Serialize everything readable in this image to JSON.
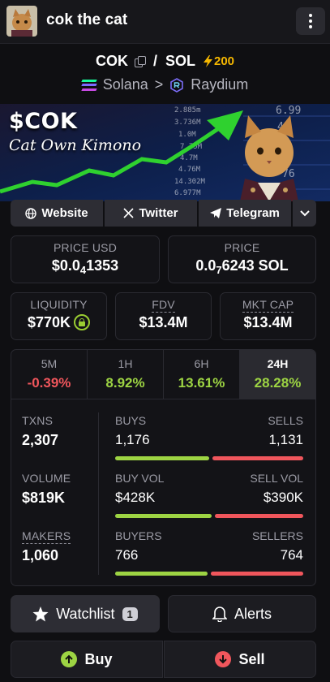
{
  "header": {
    "title": "cok the cat",
    "menu_icon": "kebab-menu-icon"
  },
  "pair": {
    "base": "COK",
    "quote": "SOL",
    "separator": "/",
    "boost": "200",
    "chain": "Solana",
    "chevron": ">",
    "dex": "Raydium"
  },
  "banner": {
    "ticker": "$COK",
    "subtitle": "Cat Own Kimono"
  },
  "socials": {
    "website": "Website",
    "twitter": "Twitter",
    "telegram": "Telegram"
  },
  "price": {
    "usd_label": "PRICE USD",
    "usd_prefix": "$0.0",
    "usd_sub": "4",
    "usd_suffix": "1353",
    "native_label": "PRICE",
    "native_prefix": "0.0",
    "native_sub": "7",
    "native_suffix": "6243 SOL"
  },
  "metrics": {
    "liquidity_label": "LIQUIDITY",
    "liquidity": "$770K",
    "fdv_label": "FDV",
    "fdv": "$13.4M",
    "mcap_label": "MKT CAP",
    "mcap": "$13.4M"
  },
  "timeframes": [
    {
      "label": "5M",
      "change": "-0.39%"
    },
    {
      "label": "1H",
      "change": "8.92%"
    },
    {
      "label": "6H",
      "change": "13.61%"
    },
    {
      "label": "24H",
      "change": "28.28%"
    }
  ],
  "stats": {
    "txns_label": "TXNS",
    "txns": "2,307",
    "buys_label": "BUYS",
    "buys": "1,176",
    "sells_label": "SELLS",
    "sells": "1,131",
    "buys_ratio": 0.51,
    "volume_label": "VOLUME",
    "volume": "$819K",
    "buy_vol_label": "BUY VOL",
    "buy_vol": "$428K",
    "sell_vol_label": "SELL VOL",
    "sell_vol": "$390K",
    "vol_ratio": 0.52,
    "makers_label": "MAKERS",
    "makers": "1,060",
    "buyers_label": "BUYERS",
    "buyers": "766",
    "sellers_label": "SELLERS",
    "sellers": "764",
    "makers_ratio": 0.5
  },
  "actions": {
    "watchlist": "Watchlist",
    "watchlist_count": "1",
    "alerts": "Alerts",
    "buy": "Buy",
    "sell": "Sell"
  },
  "colors": {
    "positive": "#9dd443",
    "negative": "#f0565c",
    "boost": "#f5b700",
    "background": "#0f0f12"
  }
}
